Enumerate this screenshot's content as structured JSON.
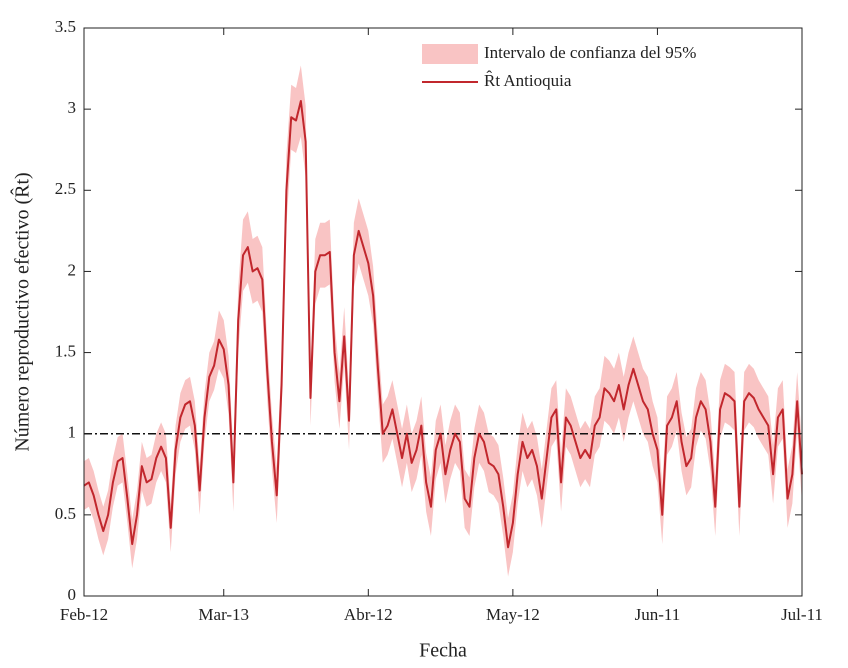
{
  "chart_data": {
    "type": "line",
    "x_label": "Fecha",
    "y_label": "Número reproductivo efectivo (R̂t)",
    "categories": [
      "Feb-12",
      null,
      null,
      null,
      null,
      null,
      null,
      null,
      null,
      null,
      null,
      null,
      null,
      null,
      null,
      null,
      null,
      null,
      null,
      null,
      null,
      null,
      null,
      null,
      null,
      null,
      null,
      null,
      null,
      "Mar-13",
      null,
      null,
      null,
      null,
      null,
      null,
      null,
      null,
      null,
      null,
      null,
      null,
      null,
      null,
      null,
      null,
      null,
      null,
      null,
      null,
      null,
      null,
      null,
      null,
      null,
      null,
      null,
      null,
      null,
      "Abr-12",
      null,
      null,
      null,
      null,
      null,
      null,
      null,
      null,
      null,
      null,
      null,
      null,
      null,
      null,
      null,
      null,
      null,
      null,
      null,
      null,
      null,
      null,
      null,
      null,
      null,
      null,
      null,
      null,
      null,
      "May-12",
      null,
      null,
      null,
      null,
      null,
      null,
      null,
      null,
      null,
      null,
      null,
      null,
      null,
      null,
      null,
      null,
      null,
      null,
      null,
      null,
      null,
      null,
      null,
      null,
      null,
      null,
      null,
      null,
      null,
      "Jun-11",
      null,
      null,
      null,
      null,
      null,
      null,
      null,
      null,
      null,
      null,
      null,
      null,
      null,
      null,
      null,
      null,
      null,
      null,
      null,
      null,
      null,
      null,
      null,
      null,
      null,
      null,
      null,
      null,
      null,
      "Jul-11"
    ],
    "series": [
      {
        "name": "R̂t Antioquia",
        "color": "#c1272d",
        "values": [
          0.68,
          0.7,
          0.62,
          0.5,
          0.4,
          0.5,
          0.7,
          0.83,
          0.85,
          0.6,
          0.32,
          0.5,
          0.8,
          0.7,
          0.72,
          0.85,
          0.92,
          0.85,
          0.42,
          0.9,
          1.1,
          1.18,
          1.2,
          1.05,
          0.65,
          1.1,
          1.35,
          1.42,
          1.58,
          1.52,
          1.3,
          0.7,
          1.7,
          2.1,
          2.15,
          2.0,
          2.02,
          1.95,
          1.4,
          0.95,
          0.62,
          1.3,
          2.5,
          2.95,
          2.93,
          3.05,
          2.8,
          1.22,
          2.0,
          2.1,
          2.1,
          2.12,
          1.5,
          1.2,
          1.6,
          1.08,
          2.1,
          2.25,
          2.15,
          2.05,
          1.85,
          1.4,
          1.0,
          1.05,
          1.15,
          1.0,
          0.85,
          1.0,
          0.82,
          0.9,
          1.05,
          0.7,
          0.55,
          0.9,
          1.0,
          0.75,
          0.9,
          1.0,
          0.95,
          0.6,
          0.55,
          0.85,
          1.0,
          0.95,
          0.82,
          0.8,
          0.75,
          0.55,
          0.3,
          0.45,
          0.75,
          0.95,
          0.85,
          0.9,
          0.8,
          0.6,
          0.85,
          1.1,
          1.15,
          0.7,
          1.1,
          1.05,
          0.95,
          0.85,
          0.9,
          0.85,
          1.05,
          1.1,
          1.28,
          1.25,
          1.2,
          1.3,
          1.15,
          1.3,
          1.4,
          1.3,
          1.2,
          1.15,
          1.0,
          0.9,
          0.5,
          1.05,
          1.1,
          1.2,
          0.95,
          0.8,
          0.85,
          1.1,
          1.2,
          1.15,
          0.95,
          0.55,
          1.15,
          1.25,
          1.23,
          1.2,
          0.55,
          1.2,
          1.25,
          1.22,
          1.15,
          1.1,
          1.05,
          0.75,
          1.1,
          1.15,
          0.6,
          0.75,
          1.2,
          0.75
        ]
      }
    ],
    "band": {
      "name": "Intervalo de confianza del 95%",
      "color": "#f9c4c4",
      "lower": [
        0.53,
        0.55,
        0.47,
        0.35,
        0.25,
        0.35,
        0.55,
        0.68,
        0.7,
        0.45,
        0.17,
        0.35,
        0.65,
        0.55,
        0.57,
        0.7,
        0.77,
        0.7,
        0.27,
        0.75,
        0.95,
        1.03,
        1.05,
        0.9,
        0.5,
        0.95,
        1.2,
        1.27,
        1.4,
        1.34,
        1.12,
        0.52,
        1.5,
        1.88,
        1.93,
        1.8,
        1.82,
        1.75,
        1.22,
        0.78,
        0.45,
        1.12,
        2.28,
        2.75,
        2.73,
        2.83,
        2.58,
        1.05,
        1.8,
        1.9,
        1.9,
        1.92,
        1.32,
        1.03,
        1.42,
        0.9,
        1.9,
        2.05,
        1.95,
        1.85,
        1.67,
        1.22,
        0.82,
        0.87,
        0.97,
        0.82,
        0.67,
        0.82,
        0.64,
        0.72,
        0.87,
        0.52,
        0.37,
        0.72,
        0.82,
        0.57,
        0.72,
        0.82,
        0.77,
        0.42,
        0.37,
        0.67,
        0.82,
        0.77,
        0.64,
        0.62,
        0.57,
        0.37,
        0.12,
        0.27,
        0.57,
        0.77,
        0.67,
        0.72,
        0.62,
        0.42,
        0.67,
        0.92,
        0.97,
        0.52,
        0.92,
        0.87,
        0.77,
        0.67,
        0.72,
        0.67,
        0.87,
        0.92,
        1.08,
        1.05,
        1.0,
        1.1,
        0.95,
        1.1,
        1.2,
        1.1,
        1.0,
        0.95,
        0.8,
        0.7,
        0.32,
        0.87,
        0.92,
        1.02,
        0.77,
        0.62,
        0.67,
        0.92,
        1.02,
        0.97,
        0.77,
        0.37,
        0.97,
        1.07,
        1.05,
        1.02,
        0.37,
        1.02,
        1.07,
        1.04,
        0.97,
        0.92,
        0.87,
        0.57,
        0.92,
        0.97,
        0.42,
        0.57,
        1.02,
        0.57
      ],
      "upper": [
        0.83,
        0.85,
        0.77,
        0.65,
        0.55,
        0.65,
        0.85,
        0.98,
        1.0,
        0.75,
        0.47,
        0.65,
        0.95,
        0.85,
        0.87,
        1.0,
        1.07,
        1.0,
        0.57,
        1.05,
        1.25,
        1.33,
        1.35,
        1.2,
        0.8,
        1.25,
        1.5,
        1.57,
        1.76,
        1.7,
        1.48,
        0.88,
        1.9,
        2.32,
        2.37,
        2.2,
        2.22,
        2.15,
        1.58,
        1.12,
        0.79,
        1.48,
        2.72,
        3.15,
        3.13,
        3.27,
        3.02,
        1.39,
        2.2,
        2.3,
        2.3,
        2.32,
        1.68,
        1.37,
        1.78,
        1.26,
        2.3,
        2.45,
        2.35,
        2.25,
        2.03,
        1.58,
        1.18,
        1.23,
        1.33,
        1.18,
        1.03,
        1.18,
        1.0,
        1.08,
        1.23,
        0.88,
        0.73,
        1.08,
        1.18,
        0.93,
        1.08,
        1.18,
        1.13,
        0.78,
        0.73,
        1.03,
        1.18,
        1.13,
        1.0,
        0.98,
        0.93,
        0.73,
        0.48,
        0.63,
        0.93,
        1.13,
        1.03,
        1.08,
        0.98,
        0.78,
        1.03,
        1.28,
        1.33,
        0.88,
        1.28,
        1.23,
        1.13,
        1.03,
        1.08,
        1.03,
        1.23,
        1.28,
        1.48,
        1.45,
        1.4,
        1.5,
        1.35,
        1.5,
        1.6,
        1.5,
        1.4,
        1.35,
        1.2,
        1.1,
        0.68,
        1.23,
        1.28,
        1.38,
        1.13,
        0.98,
        1.03,
        1.28,
        1.38,
        1.33,
        1.13,
        0.73,
        1.33,
        1.43,
        1.41,
        1.38,
        0.73,
        1.38,
        1.43,
        1.4,
        1.33,
        1.28,
        1.23,
        0.93,
        1.28,
        1.33,
        0.78,
        0.93,
        1.38,
        0.93
      ]
    },
    "reference_line": 1,
    "ylim": [
      0,
      3.5
    ],
    "yticks": [
      0,
      0.5,
      1,
      1.5,
      2,
      2.5,
      3,
      3.5
    ],
    "legend": "upper right"
  }
}
